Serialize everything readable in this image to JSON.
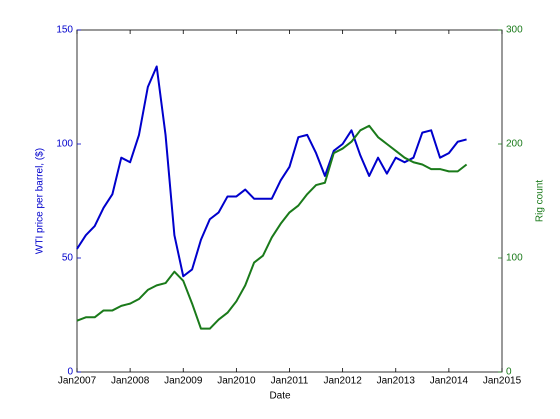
{
  "chart_data": {
    "type": "line",
    "xlabel": "Date",
    "ylabel": "WTI price per barrel, ($)",
    "y2label": "Rig count",
    "x": [
      "2007-01",
      "2007-03",
      "2007-05",
      "2007-07",
      "2007-09",
      "2007-11",
      "2008-01",
      "2008-03",
      "2008-05",
      "2008-07",
      "2008-09",
      "2008-11",
      "2009-01",
      "2009-03",
      "2009-05",
      "2009-07",
      "2009-09",
      "2009-11",
      "2010-01",
      "2010-03",
      "2010-05",
      "2010-07",
      "2010-09",
      "2010-11",
      "2011-01",
      "2011-03",
      "2011-05",
      "2011-07",
      "2011-09",
      "2011-11",
      "2012-01",
      "2012-03",
      "2012-05",
      "2012-07",
      "2012-09",
      "2012-11",
      "2013-01",
      "2013-03",
      "2013-05",
      "2013-07",
      "2013-09",
      "2013-11",
      "2014-01",
      "2014-03",
      "2014-05"
    ],
    "series": [
      {
        "name": "WTI price per barrel, ($)",
        "color": "#0000cc",
        "axis": "y",
        "values": [
          54,
          60,
          64,
          72,
          78,
          94,
          92,
          104,
          125,
          134,
          104,
          60,
          42,
          45,
          58,
          67,
          70,
          77,
          77,
          80,
          76,
          76,
          76,
          84,
          90,
          103,
          104,
          96,
          86,
          97,
          100,
          106,
          95,
          86,
          94,
          87,
          94,
          92,
          94,
          105,
          106,
          94,
          96,
          101,
          102
        ]
      },
      {
        "name": "Rig count",
        "color": "#1a7a1a",
        "axis": "y2",
        "values": [
          45,
          48,
          48,
          54,
          54,
          58,
          60,
          64,
          72,
          76,
          78,
          88,
          80,
          60,
          38,
          38,
          46,
          52,
          62,
          76,
          96,
          102,
          118,
          130,
          140,
          146,
          156,
          164,
          166,
          192,
          196,
          202,
          212,
          216,
          206,
          200,
          194,
          188,
          184,
          182,
          178,
          178,
          176,
          176,
          182
        ]
      }
    ],
    "xlim": [
      "2007-01",
      "2015-01"
    ],
    "xticks": [
      {
        "value": "2007-01",
        "label": "Jan2007"
      },
      {
        "value": "2008-01",
        "label": "Jan2008"
      },
      {
        "value": "2009-01",
        "label": "Jan2009"
      },
      {
        "value": "2010-01",
        "label": "Jan2010"
      },
      {
        "value": "2011-01",
        "label": "Jan2011"
      },
      {
        "value": "2012-01",
        "label": "Jan2012"
      },
      {
        "value": "2013-01",
        "label": "Jan2013"
      },
      {
        "value": "2014-01",
        "label": "Jan2014"
      },
      {
        "value": "2015-01",
        "label": "Jan2015"
      }
    ],
    "ylim": [
      0,
      150
    ],
    "yticks": [
      0,
      50,
      100,
      150
    ],
    "y2lim": [
      0,
      300
    ],
    "y2ticks": [
      0,
      100,
      200,
      300
    ],
    "grid": false
  }
}
